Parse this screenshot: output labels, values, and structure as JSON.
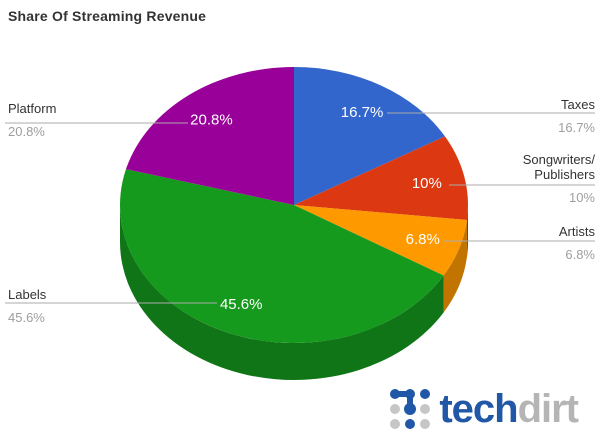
{
  "title": "Share Of Streaming Revenue",
  "chart_data": {
    "type": "pie",
    "is_3d": true,
    "title": "Share Of Streaming Revenue",
    "legend_position": "labeled-sides",
    "start_angle_deg": 0,
    "direction": "clockwise",
    "slices": [
      {
        "label": "Taxes",
        "value": 16.7,
        "pct_label": "16.7%",
        "color": "#3366CC",
        "side": "right"
      },
      {
        "label": "Songwriters/Publishers",
        "label_line1": "Songwriters/",
        "label_line2": "Publishers",
        "value": 10,
        "pct_label": "10%",
        "color": "#DC3912",
        "side": "right"
      },
      {
        "label": "Artists",
        "value": 6.8,
        "pct_label": "6.8%",
        "color": "#FF9900",
        "side": "right"
      },
      {
        "label": "Labels",
        "value": 45.6,
        "pct_label": "45.6%",
        "color": "#159A1E",
        "side": "left"
      },
      {
        "label": "Platform",
        "value": 20.8,
        "pct_label": "20.8%",
        "color": "#990099",
        "side": "left"
      }
    ],
    "slice_text_color": "#ffffff",
    "leader_line_color": "#ababab",
    "label_name_color": "#333333",
    "label_pct_color": "#9e9e9e"
  },
  "branding": {
    "logo_primary": "tech",
    "logo_secondary": "dirt",
    "logo_blue": "#2157a7",
    "logo_gray": "#b5b5b5"
  }
}
